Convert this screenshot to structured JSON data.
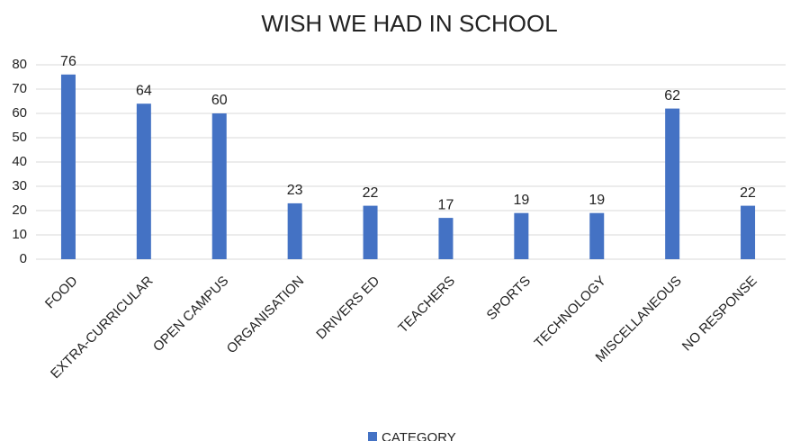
{
  "chart_data": {
    "type": "bar",
    "title": "WISH WE HAD IN SCHOOL",
    "categories": [
      "FOOD",
      "EXTRA-CURRICULAR",
      "OPEN CAMPUS",
      "ORGANISATION",
      "DRIVERS ED",
      "TEACHERS",
      "SPORTS",
      "TECHNOLOGY",
      "MISCELLANEOUS",
      "NO RESPONSE"
    ],
    "series": [
      {
        "name": "CATEGORY",
        "color": "#4472c4",
        "values": [
          76,
          64,
          60,
          23,
          22,
          17,
          19,
          19,
          62,
          22
        ]
      }
    ],
    "ylim": [
      0,
      80
    ],
    "yticks": [
      0,
      10,
      20,
      30,
      40,
      50,
      60,
      70,
      80
    ],
    "grid": true,
    "legend": "bottom"
  }
}
